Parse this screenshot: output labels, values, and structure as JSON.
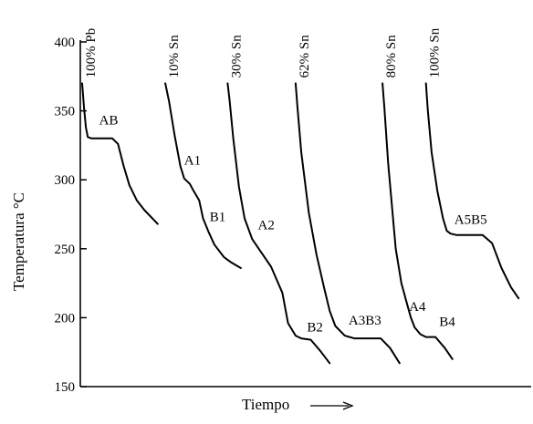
{
  "chart_data": {
    "type": "line",
    "title": "",
    "xlabel": "Tiempo",
    "ylabel": "Temperatura °C",
    "ylim": [
      150,
      400
    ],
    "yticks": [
      "150",
      "200",
      "250",
      "300",
      "350",
      "400"
    ],
    "grid": false,
    "series": [
      {
        "name": "100% Pb",
        "x": [
          0,
          2,
          4,
          6,
          10,
          20,
          32,
          38,
          44,
          50,
          58,
          66,
          80
        ],
        "y": [
          370,
          352,
          338,
          331,
          330,
          330,
          330,
          326,
          310,
          296,
          285,
          278,
          268
        ],
        "labels": [
          {
            "text": "AB",
            "x": 18,
            "y": 340
          }
        ]
      },
      {
        "name": "10% Sn",
        "x": [
          88,
          92,
          98,
          104,
          108,
          114,
          118,
          124,
          128,
          134,
          140,
          150,
          158,
          168
        ],
        "y": [
          370,
          357,
          332,
          310,
          301,
          297,
          292,
          285,
          272,
          262,
          253,
          244,
          240,
          236
        ],
        "labels": [
          {
            "text": "A1",
            "x": 108,
            "y": 311
          },
          {
            "text": "B1",
            "x": 135,
            "y": 270
          }
        ]
      },
      {
        "name": "30% Sn",
        "x": [
          154,
          156,
          160,
          166,
          172,
          180,
          190,
          200,
          212,
          218,
          226,
          232,
          242,
          252,
          262
        ],
        "y": [
          370,
          358,
          330,
          295,
          272,
          257,
          247,
          237,
          218,
          196,
          187,
          185,
          184,
          176,
          167
        ],
        "labels": [
          {
            "text": "A2",
            "x": 186,
            "y": 264
          },
          {
            "text": "B2",
            "x": 238,
            "y": 190
          }
        ]
      },
      {
        "name": "62% Sn",
        "x": [
          226,
          228,
          232,
          240,
          248,
          256,
          262,
          268,
          278,
          288,
          300,
          316,
          326,
          336
        ],
        "y": [
          370,
          352,
          320,
          276,
          246,
          222,
          205,
          194,
          187,
          185,
          185,
          185,
          178,
          167
        ],
        "labels": [
          {
            "text": "A3B3",
            "x": 282,
            "y": 195
          }
        ]
      },
      {
        "name": "80% Sn",
        "x": [
          318,
          320,
          324,
          332,
          338,
          344,
          348,
          352,
          358,
          364,
          374,
          384,
          392
        ],
        "y": [
          370,
          352,
          312,
          250,
          225,
          210,
          200,
          193,
          188,
          186,
          186,
          178,
          170
        ],
        "labels": [
          {
            "text": "A4",
            "x": 346,
            "y": 205
          },
          {
            "text": "B4",
            "x": 378,
            "y": 194
          }
        ]
      },
      {
        "name": "100% Sn",
        "x": [
          364,
          366,
          370,
          376,
          382,
          386,
          390,
          396,
          410,
          424,
          434,
          444,
          454,
          462
        ],
        "y": [
          370,
          350,
          320,
          292,
          272,
          263,
          261,
          260,
          260,
          260,
          254,
          236,
          222,
          214
        ],
        "labels": [
          {
            "text": "A5B5",
            "x": 394,
            "y": 268
          }
        ]
      }
    ]
  }
}
